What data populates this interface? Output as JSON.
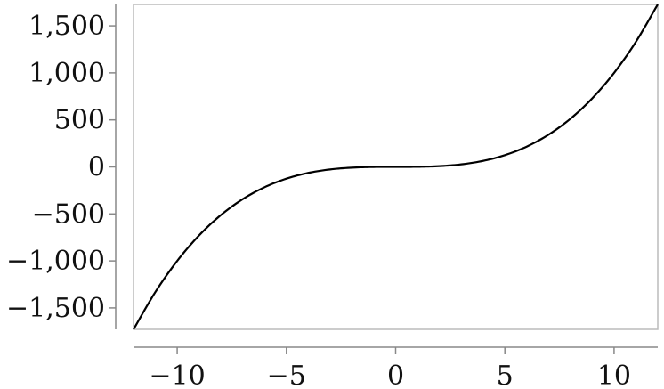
{
  "chart_data": {
    "type": "line",
    "title": "",
    "xlabel": "",
    "ylabel": "",
    "xlim": [
      -12,
      12
    ],
    "ylim": [
      -1728,
      1728
    ],
    "x_ticks": [
      -10,
      -5,
      0,
      5,
      10
    ],
    "x_tick_labels": [
      "−10",
      "−5",
      "0",
      "5",
      "10"
    ],
    "y_ticks": [
      -1500,
      -1000,
      -500,
      0,
      500,
      1000,
      1500
    ],
    "y_tick_labels": [
      "−1,500",
      "−1,000",
      "−500",
      "0",
      "500",
      "1,000",
      "1,500"
    ],
    "grid": false,
    "legend": "none",
    "series": [
      {
        "x": [
          -12,
          -11,
          -10,
          -9,
          -8,
          -7,
          -6,
          -5,
          -4,
          -3,
          -2,
          -1,
          0,
          1,
          2,
          3,
          4,
          5,
          6,
          7,
          8,
          9,
          10,
          11,
          12
        ],
        "y": [
          -1728,
          -1331,
          -1000,
          -729,
          -512,
          -343,
          -216,
          -125,
          -64,
          -27,
          -8,
          -1,
          0,
          1,
          8,
          27,
          64,
          125,
          216,
          343,
          512,
          729,
          1000,
          1331,
          1728
        ],
        "color": "#000000"
      }
    ],
    "frame_color": "#bbbbbb",
    "axis_color": "#888888"
  }
}
